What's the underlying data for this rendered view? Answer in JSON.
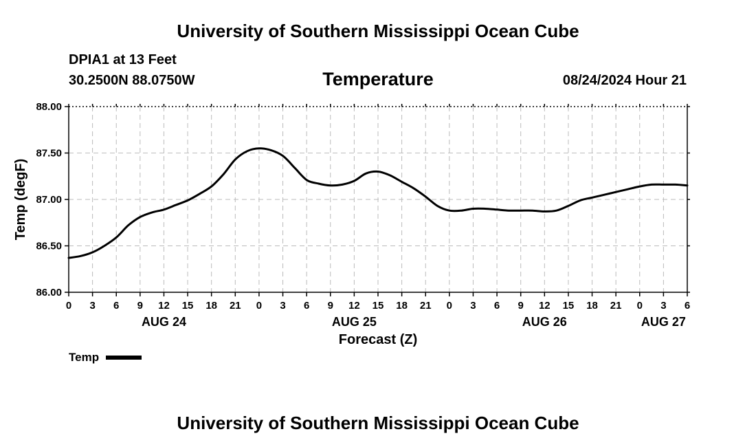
{
  "header": {
    "title": "University of Southern Mississippi Ocean Cube",
    "station": "DPIA1 at 13 Feet",
    "coords": "30.2500N  88.0750W",
    "variable": "Temperature",
    "datetime": "08/24/2024 Hour 21"
  },
  "footer": {
    "title": "University of Southern Mississippi Ocean Cube"
  },
  "legend": {
    "label": "Temp",
    "color": "#000000"
  },
  "chart_data": {
    "type": "line",
    "title": "Temperature",
    "xlabel": "Forecast (Z)",
    "ylabel": "Temp (degF)",
    "ylim": [
      86.0,
      88.0
    ],
    "yticks": [
      86.0,
      86.5,
      87.0,
      87.5,
      88.0
    ],
    "ytick_labels": [
      "86.00",
      "86.50",
      "87.00",
      "87.50",
      "88.00"
    ],
    "xlim_hours": [
      0,
      78
    ],
    "xtick_hours": [
      0,
      3,
      6,
      9,
      12,
      15,
      18,
      21,
      24,
      27,
      30,
      33,
      36,
      39,
      42,
      45,
      48,
      51,
      54,
      57,
      60,
      63,
      66,
      69,
      72,
      75,
      78
    ],
    "xtick_labels": [
      "0",
      "3",
      "6",
      "9",
      "12",
      "15",
      "18",
      "21",
      "0",
      "3",
      "6",
      "9",
      "12",
      "15",
      "18",
      "21",
      "0",
      "3",
      "6",
      "9",
      "12",
      "15",
      "18",
      "21",
      "0",
      "3",
      "6"
    ],
    "date_labels": [
      {
        "label": "AUG 24",
        "hour": 12
      },
      {
        "label": "AUG 25",
        "hour": 36
      },
      {
        "label": "AUG 26",
        "hour": 60
      },
      {
        "label": "AUG 27",
        "hour": 75
      }
    ],
    "grid": true,
    "legend_position": "bottom-left",
    "series": [
      {
        "name": "Temp",
        "color": "#000000",
        "x_hours": [
          0,
          1.5,
          3,
          4.5,
          6,
          7.5,
          9,
          10.5,
          12,
          13.5,
          15,
          16.5,
          18,
          19.5,
          21,
          22.5,
          24,
          25.5,
          27,
          28.5,
          30,
          31.5,
          33,
          34.5,
          36,
          37.5,
          39,
          40.5,
          42,
          43.5,
          45,
          46.5,
          48,
          49.5,
          51,
          52.5,
          54,
          55.5,
          57,
          58.5,
          60,
          61.5,
          63,
          64.5,
          66,
          67.5,
          69,
          70.5,
          72,
          73.5,
          75,
          76.5,
          78
        ],
        "values": [
          86.37,
          86.39,
          86.43,
          86.5,
          86.59,
          86.72,
          86.81,
          86.86,
          86.89,
          86.94,
          86.99,
          87.06,
          87.14,
          87.27,
          87.43,
          87.52,
          87.55,
          87.53,
          87.47,
          87.34,
          87.21,
          87.17,
          87.15,
          87.16,
          87.2,
          87.28,
          87.3,
          87.26,
          87.19,
          87.12,
          87.03,
          86.93,
          86.88,
          86.88,
          86.9,
          86.9,
          86.89,
          86.88,
          86.88,
          86.88,
          86.87,
          86.88,
          86.93,
          86.99,
          87.02,
          87.05,
          87.08,
          87.11,
          87.14,
          87.16,
          87.16,
          87.16,
          87.15
        ]
      }
    ]
  }
}
